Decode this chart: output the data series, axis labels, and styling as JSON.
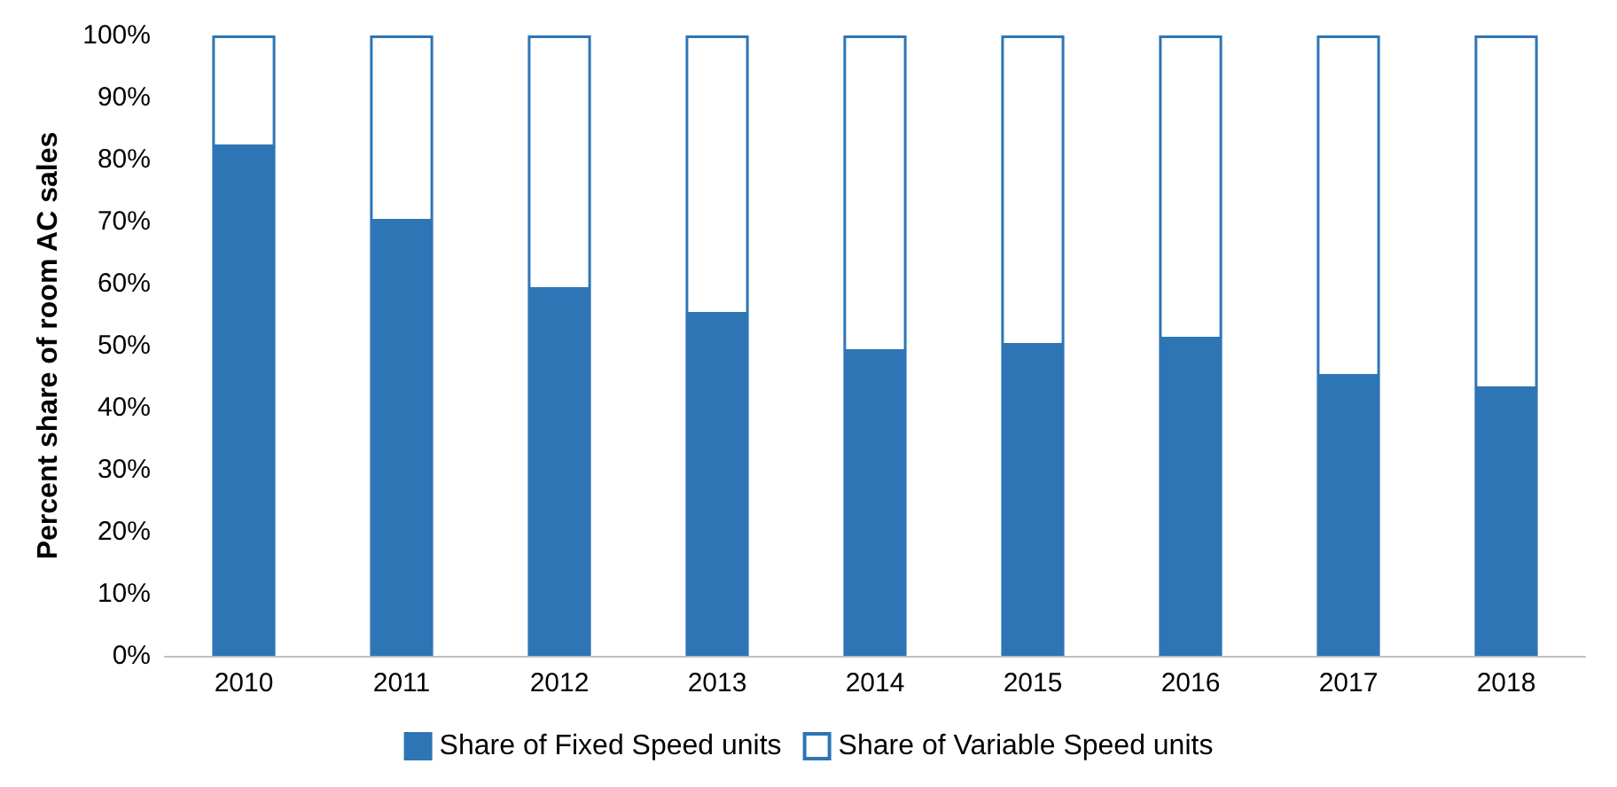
{
  "chart_data": {
    "type": "bar",
    "stacked": true,
    "ylabel": "Percent share of room AC sales",
    "categories": [
      "2010",
      "2011",
      "2012",
      "2013",
      "2014",
      "2015",
      "2016",
      "2017",
      "2018"
    ],
    "series": [
      {
        "name": "Share of Fixed Speed units",
        "color": "#2e75b6",
        "values": [
          82,
          70,
          59,
          55,
          49,
          50,
          51,
          45,
          43
        ]
      },
      {
        "name": "Share of Variable Speed units",
        "color": "#ffffff",
        "values": [
          18,
          30,
          41,
          45,
          51,
          50,
          49,
          55,
          57
        ]
      }
    ],
    "ylim": [
      0,
      100
    ],
    "yticks": [
      {
        "value": 0,
        "label": "0%"
      },
      {
        "value": 10,
        "label": "10%"
      },
      {
        "value": 20,
        "label": "20%"
      },
      {
        "value": 30,
        "label": "30%"
      },
      {
        "value": 40,
        "label": "40%"
      },
      {
        "value": 50,
        "label": "50%"
      },
      {
        "value": 60,
        "label": "60%"
      },
      {
        "value": 70,
        "label": "70%"
      },
      {
        "value": 80,
        "label": "80%"
      },
      {
        "value": 90,
        "label": "90%"
      },
      {
        "value": 100,
        "label": "100%"
      }
    ],
    "grid": false,
    "legend": "bottom"
  }
}
